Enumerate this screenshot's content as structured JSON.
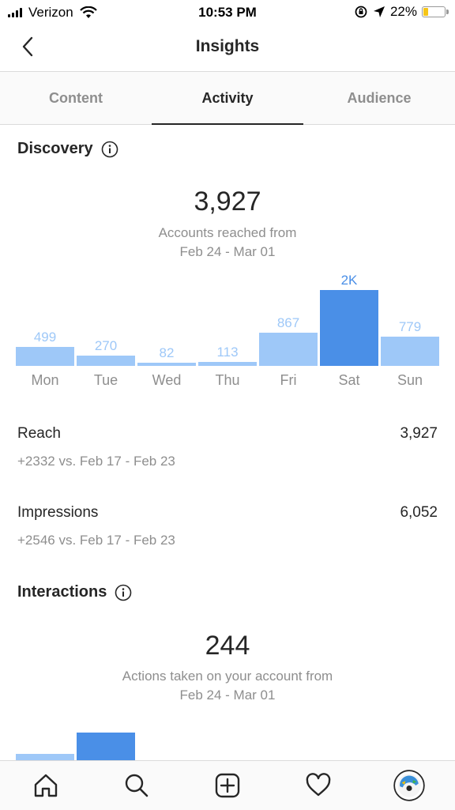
{
  "status": {
    "carrier": "Verizon",
    "time": "10:53 PM",
    "battery": "22%",
    "battery_level": 0.22
  },
  "header": {
    "title": "Insights"
  },
  "tabs": [
    "Content",
    "Activity",
    "Audience"
  ],
  "discovery": {
    "title": "Discovery",
    "total": "3,927",
    "subtitle_line1": "Accounts reached from",
    "subtitle_line2": "Feb 24 - Mar 01"
  },
  "chart_data": {
    "type": "bar",
    "categories": [
      "Mon",
      "Tue",
      "Wed",
      "Thu",
      "Fri",
      "Sat",
      "Sun"
    ],
    "values": [
      499,
      270,
      82,
      113,
      867,
      2000,
      779
    ],
    "labels": [
      "499",
      "270",
      "82",
      "113",
      "867",
      "2K",
      "779"
    ],
    "highlight_index": 5,
    "colors": {
      "bar": "#9ec8f8",
      "highlight": "#4a8fe7",
      "label": "#9ec8f8",
      "highlight_label": "#4a8fe7"
    }
  },
  "metrics": [
    {
      "name": "Reach",
      "value": "3,927",
      "compare": "+2332 vs. Feb 17 - Feb 23"
    },
    {
      "name": "Impressions",
      "value": "6,052",
      "compare": "+2546 vs. Feb 17 - Feb 23"
    }
  ],
  "interactions": {
    "title": "Interactions",
    "total": "244",
    "subtitle_line1": "Actions taken on your account from",
    "subtitle_line2": "Feb 24 - Mar 01"
  },
  "bottom_nav": [
    "home-icon",
    "search-icon",
    "add-post-icon",
    "activity-heart-icon",
    "profile-avatar-icon"
  ]
}
